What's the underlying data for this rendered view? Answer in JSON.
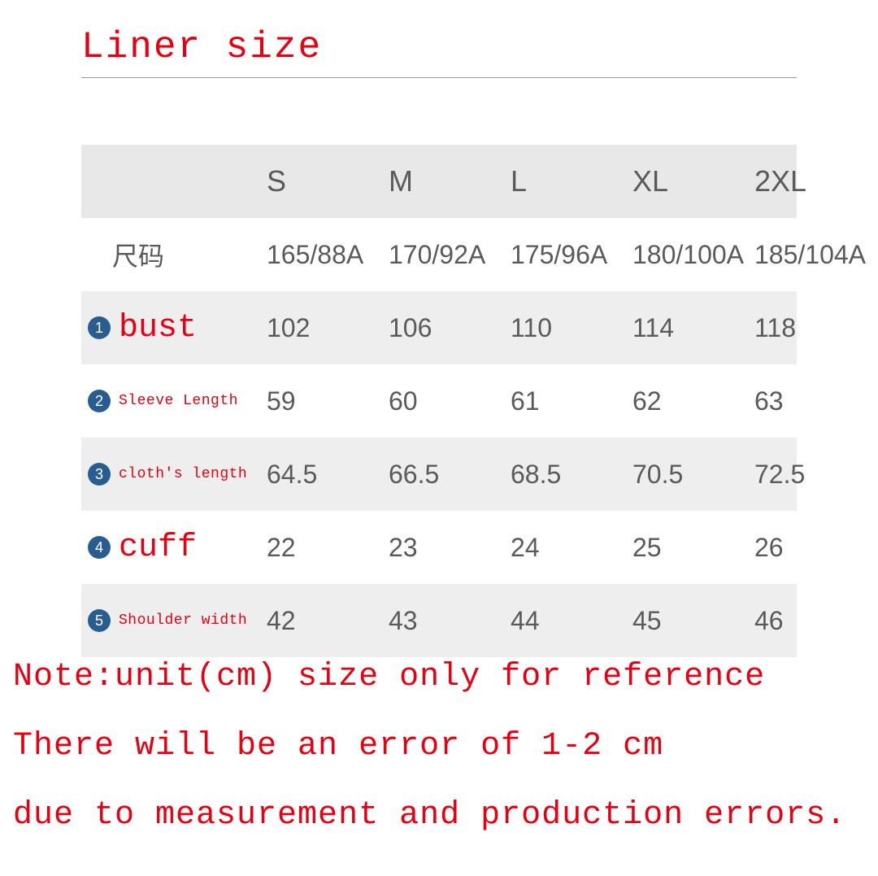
{
  "title": "Liner size",
  "columns": [
    "S",
    "M",
    "L",
    "XL",
    "2XL"
  ],
  "size_row": {
    "label": "尺码",
    "values": [
      "165/88A",
      "170/92A",
      "175/96A",
      "180/100A",
      "185/104A"
    ]
  },
  "rows": [
    {
      "num": "1",
      "label": "bust",
      "label_style": "red-lg",
      "values": [
        "102",
        "106",
        "110",
        "114",
        "118"
      ],
      "shade": true
    },
    {
      "num": "2",
      "label": "Sleeve Length",
      "label_style": "red-sm",
      "values": [
        "59",
        "60",
        "61",
        "62",
        "63"
      ],
      "shade": false
    },
    {
      "num": "3",
      "label": "cloth's length",
      "label_style": "red-sm",
      "values": [
        "64.5",
        "66.5",
        "68.5",
        "70.5",
        "72.5"
      ],
      "shade": true
    },
    {
      "num": "4",
      "label": "cuff",
      "label_style": "red-lg",
      "values": [
        "22",
        "23",
        "24",
        "25",
        "26"
      ],
      "shade": false
    },
    {
      "num": "5",
      "label": "Shoulder width",
      "label_style": "red-sm",
      "values": [
        "42",
        "43",
        "44",
        "45",
        "46"
      ],
      "shade": true
    }
  ],
  "notes": [
    "Note:unit(cm)  size only for reference",
    "There will be an error of 1-2 cm",
    "due to measurement and production errors."
  ],
  "colors": {
    "accent_red": "#e60012",
    "badge_blue": "#2a5d8f",
    "text_gray": "#5a5a5a",
    "row_shade": "#eeeeee",
    "header_shade": "#e8e8e8",
    "rule_gray": "#999999",
    "background": "#ffffff"
  }
}
